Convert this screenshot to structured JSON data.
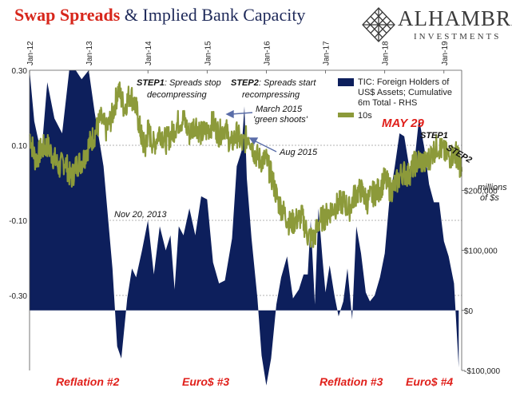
{
  "header": {
    "title_part1": "Swap Spreads",
    "title_part2": " & Implied Bank Capacity"
  },
  "logo": {
    "name": "ALHAMBRA",
    "sub": "INVESTMENTS",
    "icon": "diamond-lattice-icon"
  },
  "chart_data": {
    "type": "line",
    "title": "Swap Spreads & Implied Bank Capacity",
    "x_ticks": [
      "Jan-12",
      "Jan-13",
      "Jan-14",
      "Jan-15",
      "Jan-16",
      "Jan-17",
      "Jan-18",
      "Jan-19"
    ],
    "y_left": {
      "range": [
        -0.5,
        0.3
      ],
      "ticks": [
        "0.30",
        "0.10",
        "-0.10",
        "-0.30"
      ],
      "tick_values": [
        0.3,
        0.1,
        -0.1,
        -0.3
      ]
    },
    "y_right": {
      "range": [
        -100000,
        400000
      ],
      "ticks": [
        "$200,000",
        "$100,000",
        "$0",
        "-$100,000"
      ],
      "tick_values": [
        200000,
        100000,
        0,
        -100000
      ],
      "label": "millions of $s"
    },
    "legend": [
      {
        "name": "TIC: Foreign Holders of US$ Assets; Cumulative 6m Total - RHS",
        "lines": [
          "TIC: Foreign Holders of",
          "US$ Assets; Cumulative",
          "6m Total - RHS"
        ],
        "color": "#0d1f5c",
        "kind": "area"
      },
      {
        "name": "10s",
        "color": "#8c9a3a",
        "kind": "line"
      }
    ],
    "series": [
      {
        "name": "TIC: Foreign Holders of US$ Assets; Cumulative 6m Total - RHS",
        "axis": "right",
        "x": [
          2012.0,
          2012.08,
          2012.2,
          2012.3,
          2012.42,
          2012.55,
          2012.67,
          2012.78,
          2012.88,
          2013.0,
          2013.1,
          2013.25,
          2013.4,
          2013.48,
          2013.55,
          2013.65,
          2013.73,
          2013.8,
          2013.9,
          2014.0,
          2014.1,
          2014.2,
          2014.3,
          2014.38,
          2014.45,
          2014.52,
          2014.6,
          2014.7,
          2014.8,
          2014.9,
          2015.0,
          2015.1,
          2015.2,
          2015.3,
          2015.42,
          2015.5,
          2015.58,
          2015.63,
          2015.67,
          2015.75,
          2015.85,
          2015.92,
          2016.0,
          2016.08,
          2016.17,
          2016.25,
          2016.35,
          2016.45,
          2016.55,
          2016.63,
          2016.7,
          2016.75,
          2016.82,
          2016.88,
          2016.95,
          2017.0,
          2017.07,
          2017.15,
          2017.22,
          2017.3,
          2017.37,
          2017.45,
          2017.52,
          2017.6,
          2017.68,
          2017.75,
          2017.83,
          2017.92,
          2018.0,
          2018.08,
          2018.17,
          2018.25,
          2018.33,
          2018.42,
          2018.5,
          2018.58,
          2018.67,
          2018.75,
          2018.83,
          2018.92,
          2019.0,
          2019.08,
          2019.17,
          2019.25
        ],
        "y": [
          400000,
          315000,
          260000,
          380000,
          320000,
          295000,
          400000,
          400000,
          385000,
          400000,
          330000,
          240000,
          70000,
          -60000,
          -80000,
          20000,
          70000,
          55000,
          100000,
          150000,
          60000,
          140000,
          100000,
          125000,
          35000,
          140000,
          125000,
          170000,
          125000,
          190000,
          185000,
          80000,
          45000,
          50000,
          120000,
          240000,
          265000,
          340000,
          220000,
          120000,
          20000,
          -75000,
          -125000,
          -80000,
          10000,
          55000,
          90000,
          20000,
          35000,
          60000,
          60000,
          150000,
          10000,
          170000,
          85000,
          30000,
          75000,
          25000,
          -10000,
          15000,
          70000,
          -15000,
          140000,
          95000,
          30000,
          15000,
          25000,
          55000,
          95000,
          185000,
          240000,
          295000,
          290000,
          235000,
          245000,
          320000,
          270000,
          210000,
          180000,
          180000,
          115000,
          90000,
          45000,
          -95000
        ]
      },
      {
        "name": "10s",
        "axis": "left",
        "x": [
          2012.0,
          2012.1,
          2012.2,
          2012.3,
          2012.4,
          2012.5,
          2012.6,
          2012.7,
          2012.8,
          2012.9,
          2013.0,
          2013.1,
          2013.2,
          2013.3,
          2013.4,
          2013.5,
          2013.6,
          2013.7,
          2013.8,
          2013.88,
          2013.95,
          2014.0,
          2014.1,
          2014.2,
          2014.3,
          2014.4,
          2014.5,
          2014.6,
          2014.7,
          2014.8,
          2014.9,
          2015.0,
          2015.1,
          2015.2,
          2015.3,
          2015.4,
          2015.5,
          2015.6,
          2015.7,
          2015.8,
          2015.9,
          2016.0,
          2016.1,
          2016.2,
          2016.3,
          2016.4,
          2016.5,
          2016.6,
          2016.7,
          2016.8,
          2016.9,
          2017.0,
          2017.1,
          2017.2,
          2017.3,
          2017.4,
          2017.5,
          2017.6,
          2017.7,
          2017.8,
          2017.9,
          2018.0,
          2018.1,
          2018.2,
          2018.3,
          2018.4,
          2018.5,
          2018.6,
          2018.7,
          2018.8,
          2018.9,
          2019.0,
          2019.1,
          2019.2,
          2019.25,
          2019.3
        ],
        "y": [
          0.13,
          0.06,
          0.09,
          0.1,
          0.07,
          0.04,
          0.06,
          0.01,
          0.05,
          0.06,
          0.1,
          0.13,
          0.17,
          0.14,
          0.18,
          0.25,
          0.2,
          0.24,
          0.2,
          0.13,
          0.09,
          0.14,
          0.1,
          0.14,
          0.11,
          0.13,
          0.16,
          0.17,
          0.13,
          0.16,
          0.13,
          0.14,
          0.16,
          0.13,
          0.15,
          0.1,
          0.13,
          0.1,
          0.13,
          0.08,
          0.06,
          0.06,
          0.01,
          -0.05,
          -0.08,
          -0.11,
          -0.1,
          -0.09,
          -0.14,
          -0.15,
          -0.1,
          -0.09,
          -0.07,
          -0.06,
          -0.05,
          -0.07,
          -0.03,
          -0.02,
          -0.05,
          -0.03,
          -0.02,
          0.01,
          -0.02,
          0.0,
          0.03,
          0.02,
          0.05,
          0.06,
          0.05,
          0.08,
          0.1,
          0.08,
          0.07,
          0.08,
          0.06,
          0.03
        ]
      }
    ],
    "annotations": [
      {
        "id": "step1",
        "bold": "STEP1",
        "rest": ": Spreads stop",
        "line2": "decompressing"
      },
      {
        "id": "step2",
        "bold": "STEP2",
        "rest": ": Spreads start",
        "line2": "recompressing"
      },
      {
        "id": "march2015",
        "line1": "March 2015",
        "line2": "'green shoots'"
      },
      {
        "id": "aug2015",
        "line1": "Aug 2015"
      },
      {
        "id": "nov2013",
        "line1": "Nov 20, 2013"
      },
      {
        "id": "may29",
        "line1": "MAY 29"
      },
      {
        "id": "step1b",
        "line1": "STEP1"
      },
      {
        "id": "step2b",
        "line1": "STEP2"
      }
    ],
    "regimes": [
      "Reflation #2",
      "Euro$ #3",
      "Reflation #3",
      "Euro$ #4"
    ],
    "colors": {
      "area": "#0d1f5c",
      "line": "#8c9a3a",
      "red": "#e0201b",
      "grid": "#9a9a9a"
    }
  }
}
